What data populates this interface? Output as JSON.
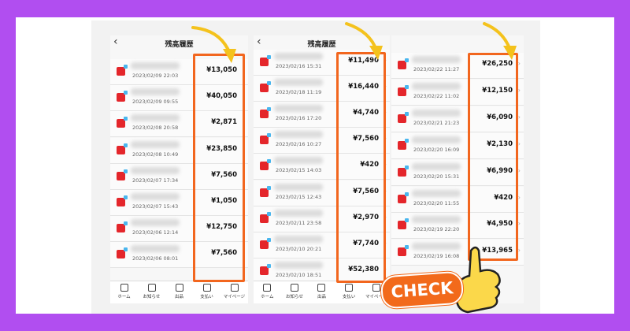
{
  "panels": [
    {
      "title": "残高履歴",
      "rows": [
        {
          "date": "2023/02/09 22:03",
          "amount": "¥13,050"
        },
        {
          "date": "2023/02/09 09:55",
          "amount": "¥40,050"
        },
        {
          "date": "2023/02/08 20:58",
          "amount": "¥2,871"
        },
        {
          "date": "2023/02/08 10:49",
          "amount": "¥23,850"
        },
        {
          "date": "2023/02/07 17:34",
          "amount": "¥7,560"
        },
        {
          "date": "2023/02/07 15:43",
          "amount": "¥1,050"
        },
        {
          "date": "2023/02/06 12:14",
          "amount": "¥12,750"
        },
        {
          "date": "2023/02/06 08:01",
          "amount": "¥7,560"
        }
      ],
      "nav": [
        "ホーム",
        "お知らせ",
        "出品",
        "支払い",
        "マイページ"
      ]
    },
    {
      "title": "残高履歴",
      "rows": [
        {
          "date": "2023/02/16 15:31",
          "amount": "¥11,490"
        },
        {
          "date": "2023/02/18 11:19",
          "amount": "¥16,440"
        },
        {
          "date": "2023/02/16 17:20",
          "amount": "¥4,740"
        },
        {
          "date": "2023/02/16 10:27",
          "amount": "¥7,560"
        },
        {
          "date": "2023/02/15 14:03",
          "amount": "¥420"
        },
        {
          "date": "2023/02/15 12:43",
          "amount": "¥7,560"
        },
        {
          "date": "2023/02/11 23:58",
          "amount": "¥2,970"
        },
        {
          "date": "2023/02/10 20:21",
          "amount": "¥7,740"
        },
        {
          "date": "2023/02/10 18:51",
          "amount": "¥52,380"
        }
      ],
      "nav": [
        "ホーム",
        "お知らせ",
        "出品",
        "支払い",
        "マイページ"
      ]
    },
    {
      "rows": [
        {
          "date": "2023/02/22 11:27",
          "amount": "¥26,250"
        },
        {
          "date": "2023/02/22 11:02",
          "amount": "¥12,150"
        },
        {
          "date": "2023/02/21 21:23",
          "amount": "¥6,090"
        },
        {
          "date": "2023/02/20 16:09",
          "amount": "¥2,130"
        },
        {
          "date": "2023/02/20 15:31",
          "amount": "¥6,990"
        },
        {
          "date": "2023/02/20 11:55",
          "amount": "¥420"
        },
        {
          "date": "2023/02/19 22:20",
          "amount": "¥4,950"
        },
        {
          "date": "2023/02/19 16:08",
          "amount": "¥13,965"
        }
      ]
    }
  ],
  "badge": "CHECK"
}
